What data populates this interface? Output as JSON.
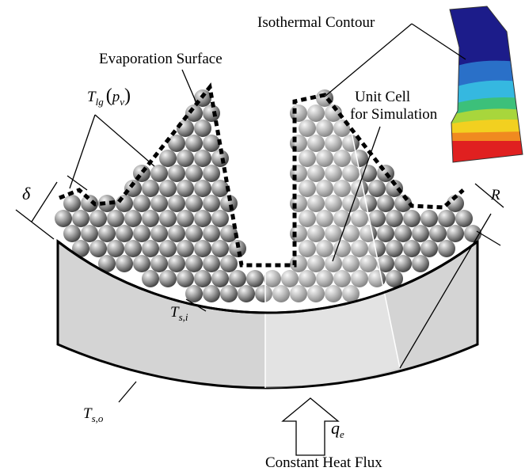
{
  "labels": {
    "isothermal_contour": "Isothermal Contour",
    "evaporation_surface": "Evaporation Surface",
    "unit_cell": [
      "Unit Cell",
      "for Simulation"
    ],
    "constant_heat_flux": "Constant Heat Flux"
  },
  "symbols": {
    "t_lg": {
      "base": "T",
      "subscript": "lg",
      "open": "(",
      "arg": "p",
      "arg_subscript": "v",
      "close": ")"
    },
    "delta": "δ",
    "r": "R",
    "t_si": {
      "base": "T",
      "subscript": "s,i"
    },
    "t_so": {
      "base": "T",
      "subscript": "s,o"
    },
    "q_e": {
      "base": "q",
      "subscript": "e"
    }
  }
}
